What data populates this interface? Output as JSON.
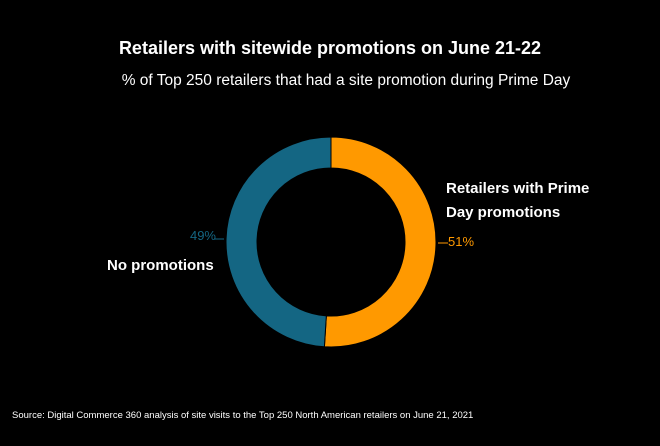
{
  "chart_data": {
    "type": "pie",
    "donut": true,
    "title": "Retailers with sitewide promotions on June 21-22",
    "subtitle": "% of  Top 250 retailers that had a site promotion during Prime Day",
    "slices": [
      {
        "label": "Retailers with Prime Day promotions",
        "label_lines": [
          "Retailers with Prime",
          "Day promotions"
        ],
        "value": 51,
        "value_label": "51%",
        "color": "#FF9900"
      },
      {
        "label": "No promotions",
        "label_lines": [
          "No promotions"
        ],
        "value": 49,
        "value_label": "49%",
        "color": "#146683"
      }
    ]
  },
  "source": "Source: Digital Commerce 360 analysis of site visits to the Top 250 North American retailers on June 21, 2021"
}
